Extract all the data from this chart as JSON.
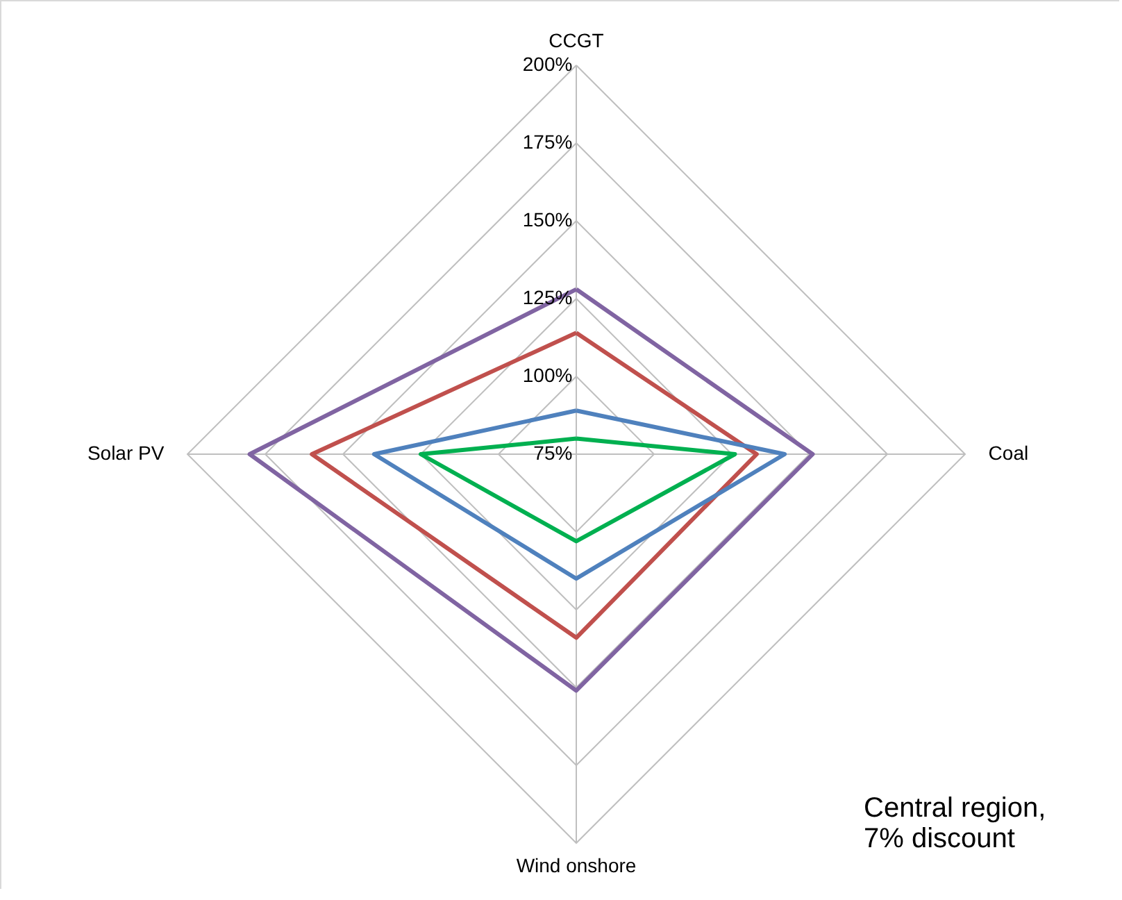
{
  "chart_data": {
    "type": "radar",
    "categories": [
      "CCGT",
      "Coal",
      "Wind onshore",
      "Solar PV"
    ],
    "series": [
      {
        "color": "#8064a2",
        "values": [
          128,
          151,
          151,
          180
        ]
      },
      {
        "color": "#c0504d",
        "values": [
          114,
          133,
          134,
          160
        ]
      },
      {
        "color": "#4f81bd",
        "values": [
          89,
          142,
          115,
          140
        ]
      },
      {
        "color": "#00b050",
        "values": [
          80,
          126,
          103,
          125
        ]
      }
    ],
    "ylim": [
      75,
      200
    ],
    "yticks": [
      {
        "value": 75,
        "label": "75%"
      },
      {
        "value": 100,
        "label": "100%"
      },
      {
        "value": 125,
        "label": "125%"
      },
      {
        "value": 150,
        "label": "150%"
      },
      {
        "value": 175,
        "label": "175%"
      },
      {
        "value": 200,
        "label": "200%"
      }
    ],
    "grid": true,
    "marker": "none",
    "line_style": "solid",
    "annotations": [
      "Central region,\n7% discount"
    ]
  }
}
